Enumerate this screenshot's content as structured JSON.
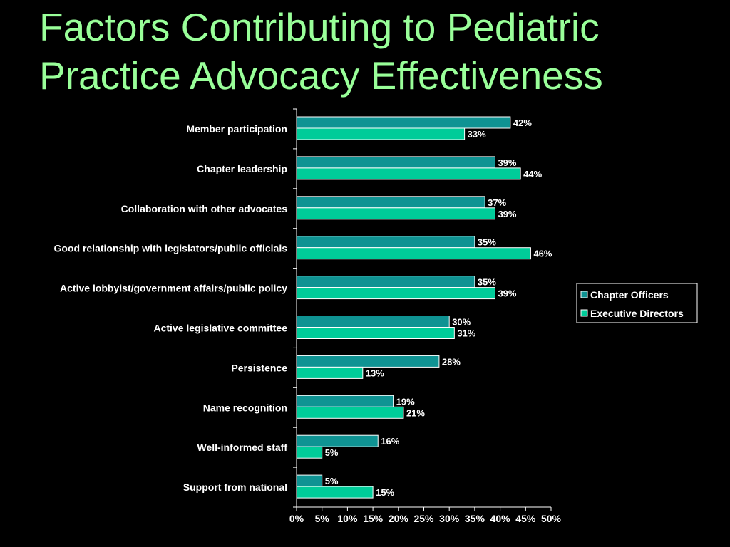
{
  "slide": {
    "title_line1": "Factors Contributing to Pediatric",
    "title_line2": "Practice Advocacy Effectiveness"
  },
  "chart_data": {
    "type": "bar",
    "orientation": "horizontal",
    "title": "",
    "xlabel": "",
    "ylabel": "",
    "categories": [
      "Member participation",
      "Chapter leadership",
      "Collaboration with other advocates",
      "Good relationship with legislators/public officials",
      "Active lobbyist/government affairs/public policy",
      "Active legislative committee",
      "Persistence",
      "Name recognition",
      "Well-informed staff",
      "Support from national"
    ],
    "series": [
      {
        "name": "Chapter Officers",
        "color": "#0f9393",
        "values": [
          42,
          39,
          37,
          35,
          35,
          30,
          28,
          19,
          16,
          5
        ],
        "labels": [
          "42%",
          "39%",
          "37%",
          "35%",
          "35%",
          "30%",
          "28%",
          "19%",
          "16%",
          "5%"
        ]
      },
      {
        "name": "Executive Directors",
        "color": "#00cc99",
        "values": [
          33,
          44,
          39,
          46,
          39,
          31,
          13,
          21,
          5,
          15
        ],
        "labels": [
          "33%",
          "44%",
          "39%",
          "46%",
          "39%",
          "31%",
          "13%",
          "21%",
          "5%",
          "15%"
        ]
      }
    ],
    "xlim": [
      0,
      50
    ],
    "x_ticks": [
      0,
      5,
      10,
      15,
      20,
      25,
      30,
      35,
      40,
      45,
      50
    ],
    "x_tick_labels": [
      "0%",
      "5%",
      "10%",
      "15%",
      "20%",
      "25%",
      "30%",
      "35%",
      "40%",
      "45%",
      "50%"
    ],
    "grid": false,
    "legend_position": "right"
  }
}
